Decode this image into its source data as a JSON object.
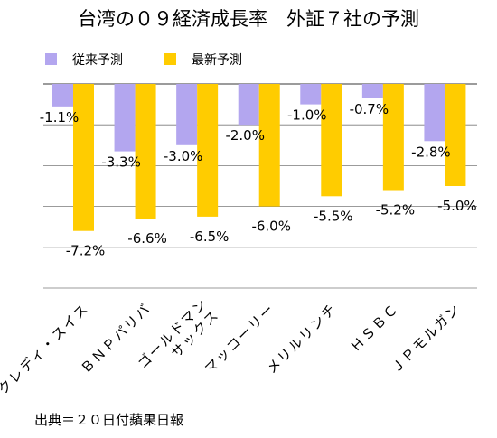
{
  "chart_data": {
    "type": "bar",
    "title": "台湾の０９経済成長率　外証７社の予測",
    "categories": [
      [
        "クレディ・スイス"
      ],
      [
        "ＢＮＰパリバ"
      ],
      [
        "ゴールドマン",
        "サックス"
      ],
      [
        "マッコーリー"
      ],
      [
        "メリルリンチ"
      ],
      [
        "ＨＳＢＣ"
      ],
      [
        "ＪＰモルガン"
      ]
    ],
    "series": [
      {
        "name": "従来予測",
        "color": "#b3a6ef",
        "values": [
          -1.1,
          -3.3,
          -3.0,
          -2.0,
          -1.0,
          -0.7,
          -2.8
        ]
      },
      {
        "name": "最新予測",
        "color": "#ffcc00",
        "values": [
          -7.2,
          -6.6,
          -6.5,
          -6.0,
          -5.5,
          -5.2,
          -5.0
        ]
      }
    ],
    "data_label_suffix": "%",
    "ylim": [
      -10,
      0
    ],
    "grid": true,
    "legend_position": "top-left"
  },
  "source": "出典＝２０日付蘋果日報"
}
